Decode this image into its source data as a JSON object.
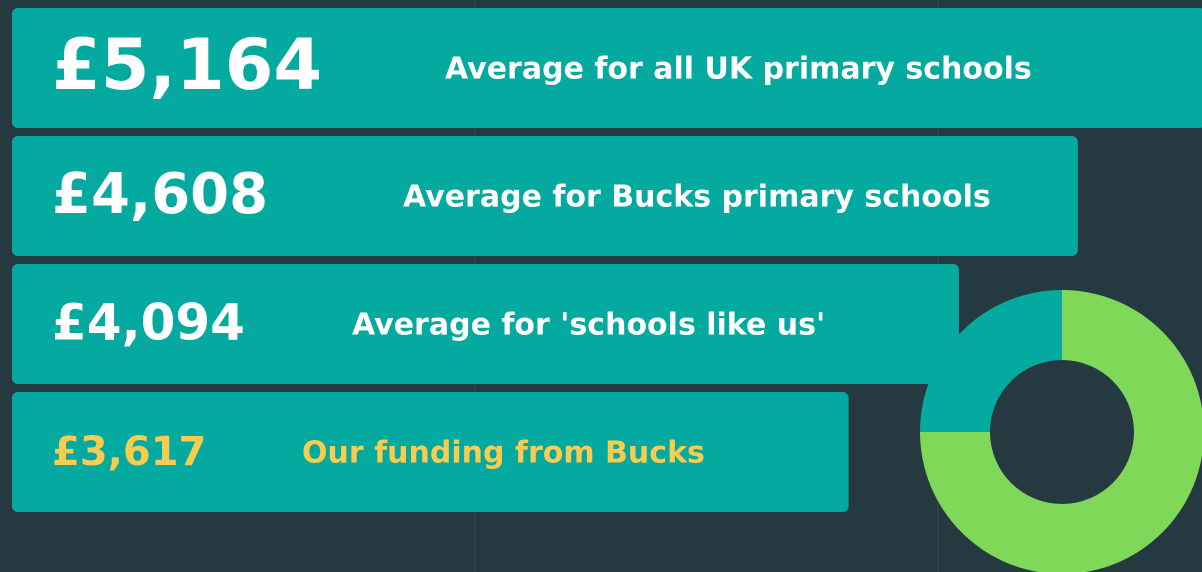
{
  "chart_data": [
    {
      "type": "hbar",
      "categories": [
        "Average for all UK primary schools",
        "Average for Bucks primary schools",
        "Average for 'schools like us'",
        "Our funding from Bucks"
      ],
      "values": [
        5164,
        4608,
        4094,
        3617
      ],
      "value_labels": [
        "£5,164",
        "£4,608",
        "£4,094",
        "£3,617"
      ],
      "color": "#04a9a0",
      "label_colors": [
        "#ffffff",
        "#ffffff",
        "#ffffff",
        "#f7cc4f"
      ]
    },
    {
      "type": "donut",
      "values": [
        75,
        25
      ],
      "colors": [
        "#7fd858",
        "#04a9a0"
      ]
    }
  ]
}
